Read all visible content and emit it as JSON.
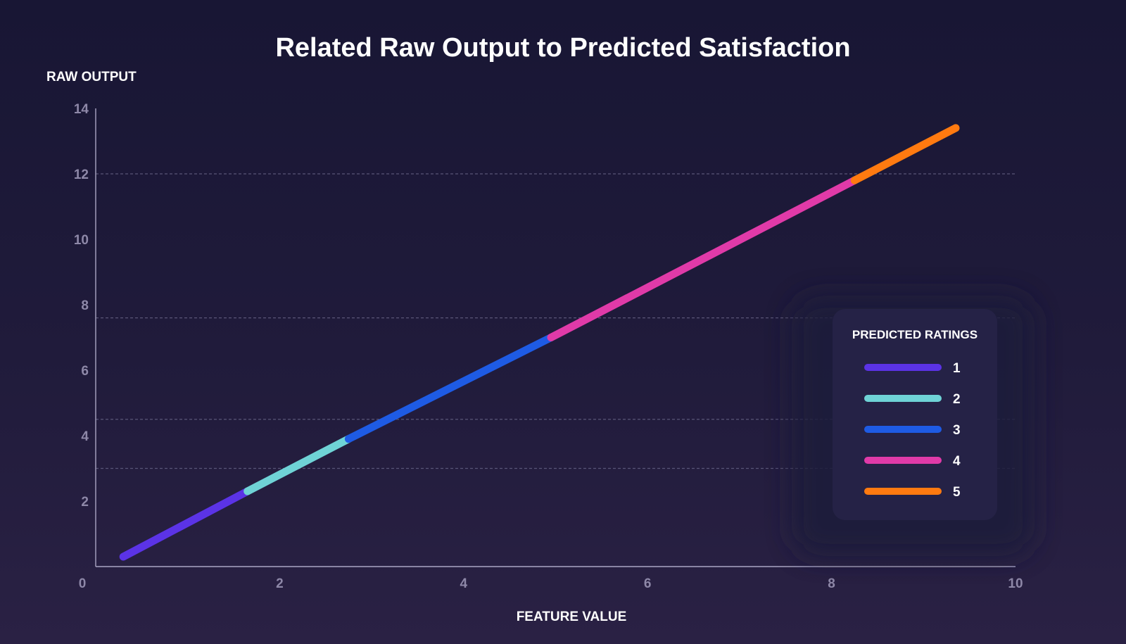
{
  "chart_data": {
    "type": "line",
    "title": "Related Raw Output to Predicted Satisfaction",
    "xlabel": "FEATURE VALUE",
    "ylabel": "RAW OUTPUT",
    "xlim": [
      0,
      10
    ],
    "ylim": [
      0,
      14
    ],
    "x_ticks": [
      "2",
      "4",
      "6",
      "8",
      "10"
    ],
    "y_ticks": [
      "2",
      "4",
      "6",
      "8",
      "10",
      "12",
      "14"
    ],
    "origin_label": "0",
    "thresholds": [
      3,
      4.5,
      7.6,
      12
    ],
    "legend": {
      "title": "PREDICTED RATINGS",
      "placement": "right"
    },
    "series": [
      {
        "name": "1",
        "color": "#5b33e6",
        "x": [
          0.3,
          1.65
        ],
        "y": [
          0.3,
          2.3
        ]
      },
      {
        "name": "2",
        "color": "#6fd3d6",
        "x": [
          1.65,
          2.75
        ],
        "y": [
          2.3,
          3.9
        ]
      },
      {
        "name": "3",
        "color": "#1e5be4",
        "x": [
          2.75,
          4.95
        ],
        "y": [
          3.9,
          7.0
        ]
      },
      {
        "name": "4",
        "color": "#e03aa8",
        "x": [
          4.95,
          8.25
        ],
        "y": [
          7.0,
          11.8
        ]
      },
      {
        "name": "5",
        "color": "#ff7a10",
        "x": [
          8.25,
          9.35
        ],
        "y": [
          11.8,
          13.4
        ]
      }
    ]
  }
}
